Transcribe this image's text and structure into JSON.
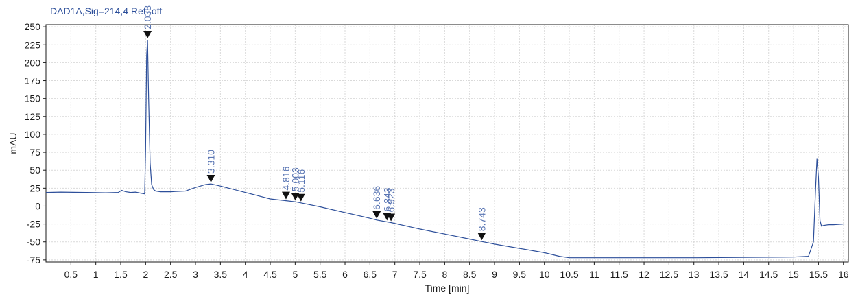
{
  "chart_data": {
    "type": "line",
    "title": "DAD1A,Sig=214,4  Ref=off",
    "xlabel": "Time [min]",
    "ylabel": "mAU",
    "xlim": [
      0,
      16.1
    ],
    "ylim": [
      -78,
      253
    ],
    "grid": true,
    "x_ticks": [
      0.5,
      1,
      1.5,
      2,
      2.5,
      3,
      3.5,
      4,
      4.5,
      5,
      5.5,
      6,
      6.5,
      7,
      7.5,
      8,
      8.5,
      9,
      9.5,
      10,
      10.5,
      11,
      11.5,
      12,
      12.5,
      13,
      13.5,
      14,
      14.5,
      15,
      15.5,
      16
    ],
    "x_tick_labels": [
      "0.5",
      "1",
      "1.5",
      "2",
      "2.5",
      "3",
      "3.5",
      "4",
      "4.5",
      "5",
      "5.5",
      "6",
      "6.5",
      "7",
      "7.5",
      "8",
      "8.5",
      "9",
      "9.5",
      "10",
      "10.5",
      "11",
      "11.5",
      "12",
      "12.5",
      "13",
      "13.5",
      "14",
      "14.5",
      "15",
      "15.5",
      "16"
    ],
    "y_ticks": [
      -75,
      -50,
      -25,
      0,
      25,
      50,
      75,
      100,
      125,
      150,
      175,
      200,
      225,
      250
    ],
    "y_tick_labels": [
      "-75",
      "-50",
      "-25",
      "0",
      "25",
      "50",
      "75",
      "100",
      "125",
      "150",
      "175",
      "200",
      "225",
      "250"
    ],
    "line_color": "#2d4f9a",
    "peak_label_color": "#5a76b4",
    "series": [
      {
        "x": [
          0,
          0.3,
          0.8,
          1.2,
          1.45,
          1.52,
          1.6,
          1.7,
          1.8,
          1.9,
          1.98,
          2.0,
          2.02,
          2.038,
          2.06,
          2.09,
          2.12,
          2.16,
          2.2,
          2.3,
          2.5,
          2.8,
          3.0,
          3.2,
          3.31,
          3.5,
          4.0,
          4.5,
          4.816,
          5.003,
          5.116,
          5.5,
          6.0,
          6.5,
          6.636,
          6.843,
          6.923,
          7.5,
          8.0,
          8.5,
          8.743,
          9.0,
          9.5,
          10.0,
          10.3,
          10.5,
          11,
          12,
          13,
          14,
          15,
          15.3,
          15.4,
          15.44,
          15.47,
          15.5,
          15.53,
          15.56,
          15.6,
          15.7,
          15.8,
          16.0
        ],
        "y": [
          19,
          19.5,
          19,
          18.5,
          19,
          22,
          20,
          19,
          19.5,
          18,
          17,
          80,
          210,
          232,
          150,
          60,
          30,
          23,
          21,
          20,
          20,
          21,
          26,
          30,
          31,
          28,
          19,
          10,
          7.5,
          6,
          4.5,
          -1,
          -9,
          -17,
          -19.5,
          -22,
          -23,
          -32,
          -39,
          -46,
          -49.5,
          -53,
          -59,
          -65,
          -70,
          -72,
          -72,
          -72,
          -72,
          -71.5,
          -71,
          -70,
          -50,
          20,
          66,
          40,
          -20,
          -28,
          -27,
          -26,
          -26,
          -25
        ]
      }
    ],
    "peaks": [
      {
        "rt": 2.038,
        "label": "2.038",
        "y": 232
      },
      {
        "rt": 3.31,
        "label": "3.310",
        "y": 31
      },
      {
        "rt": 4.816,
        "label": "4.816",
        "y": 7.5
      },
      {
        "rt": 5.003,
        "label": "5.003",
        "y": 6
      },
      {
        "rt": 5.116,
        "label": "5.116",
        "y": 4.5
      },
      {
        "rt": 6.636,
        "label": "6.636",
        "y": -19.5
      },
      {
        "rt": 6.843,
        "label": "6.843",
        "y": -22
      },
      {
        "rt": 6.923,
        "label": "6.923",
        "y": -23
      },
      {
        "rt": 8.743,
        "label": "8.743",
        "y": -49.5
      }
    ]
  }
}
